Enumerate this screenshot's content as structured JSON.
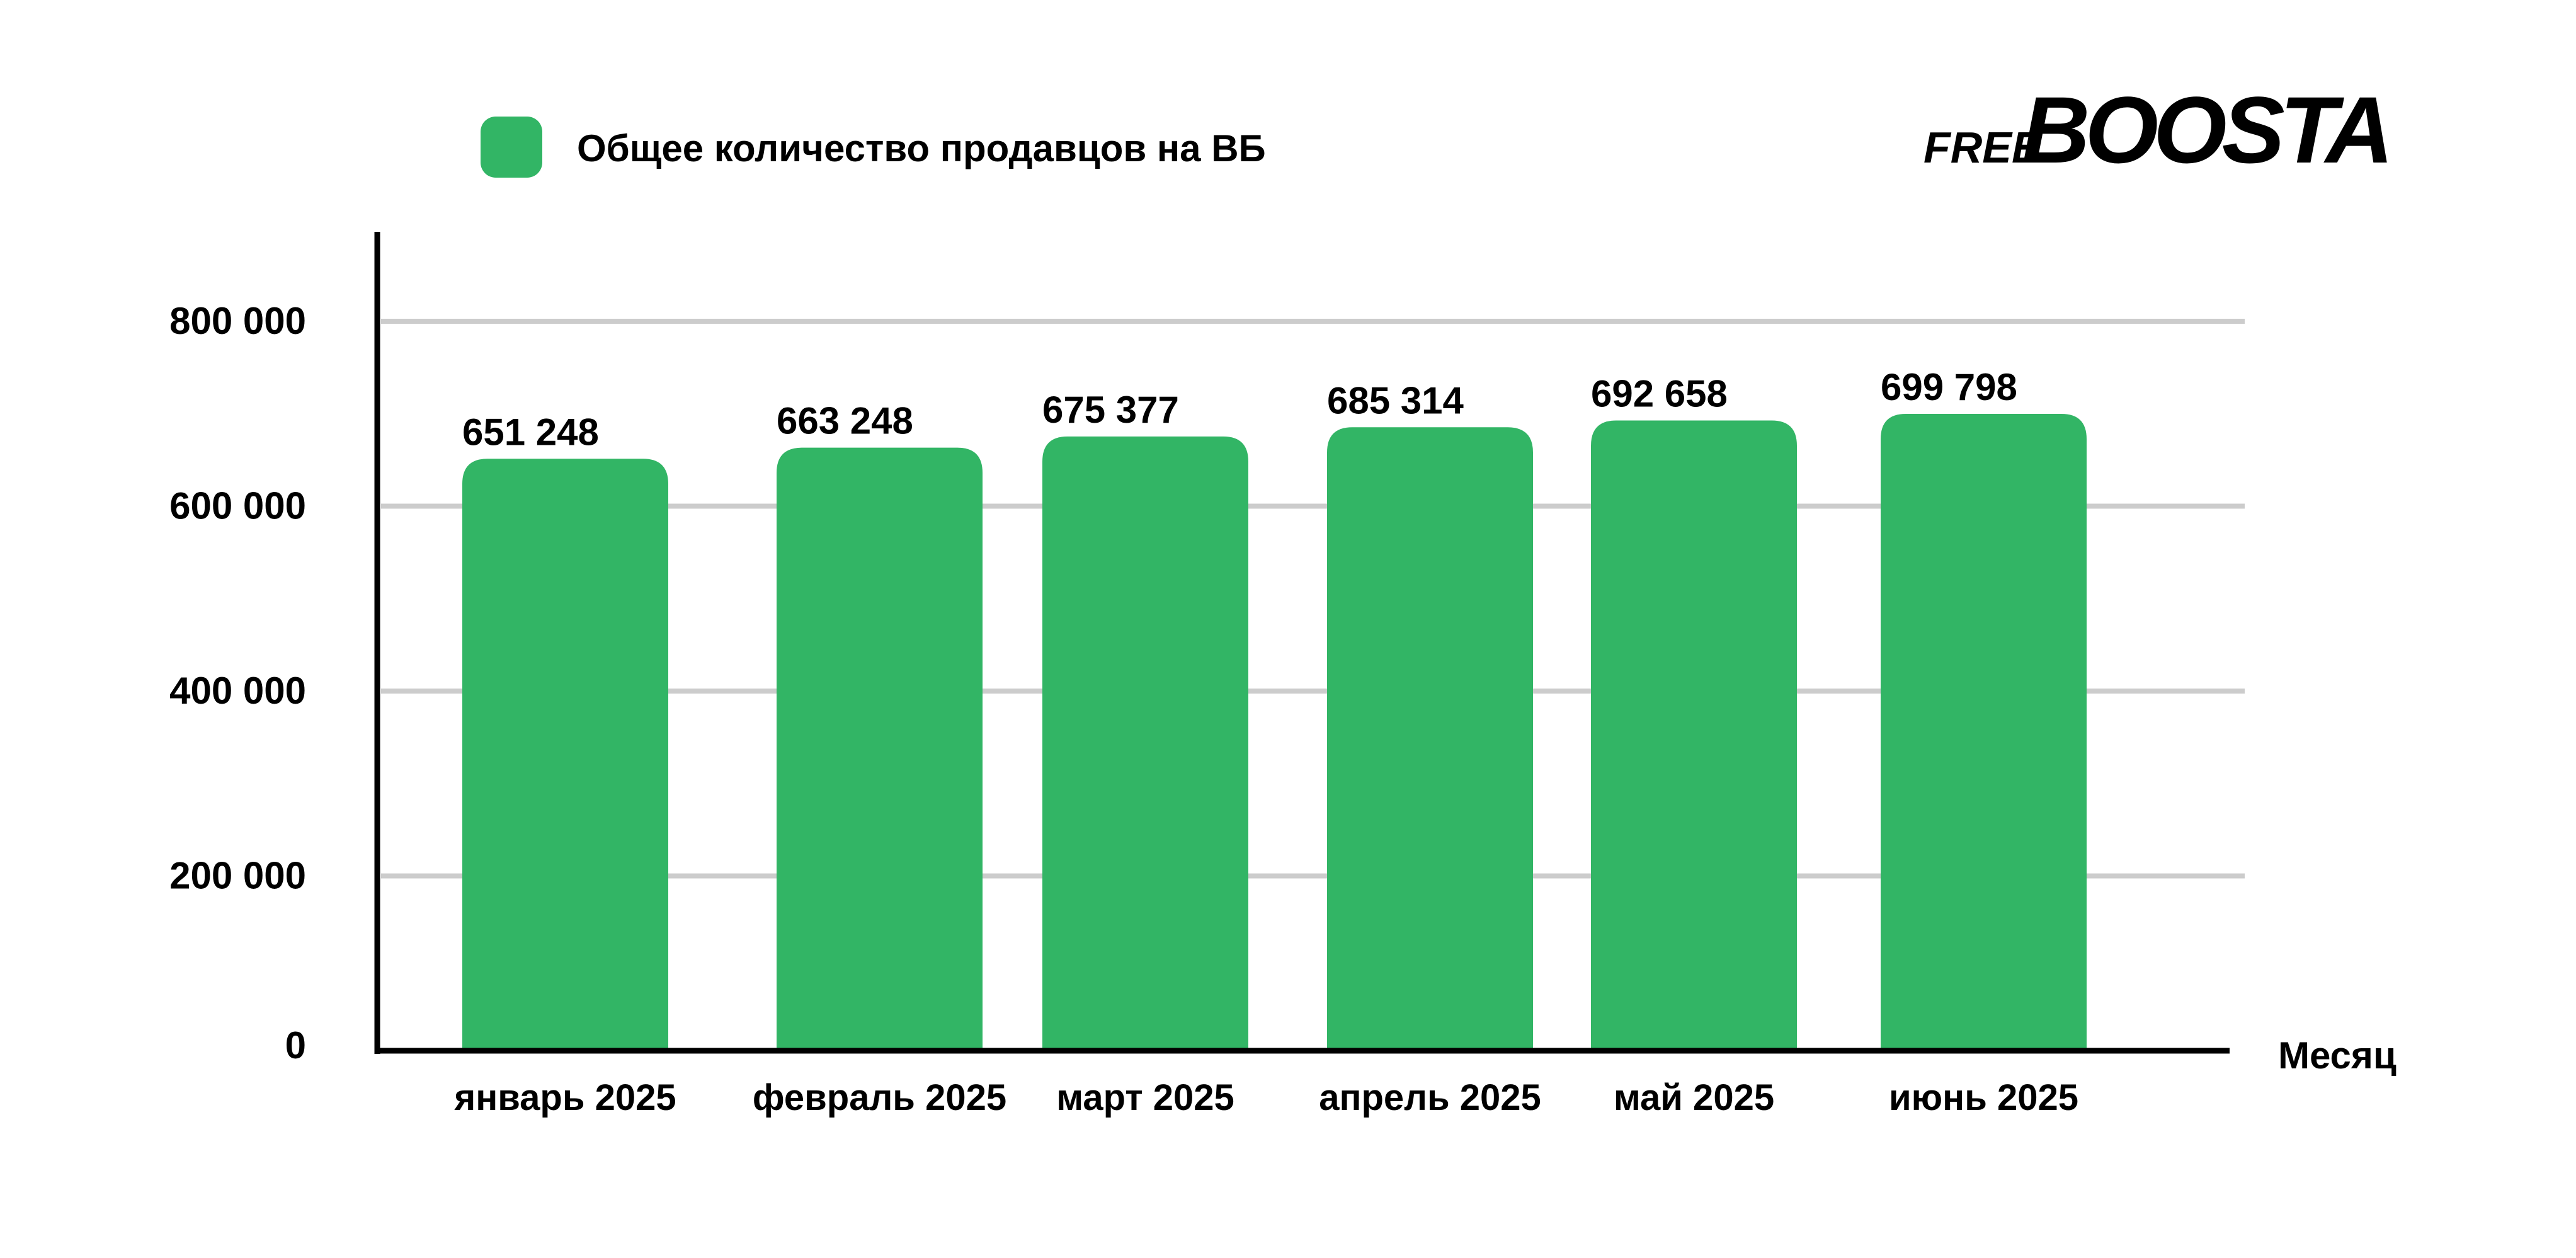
{
  "logo": {
    "part1": "FREE",
    "part2": "BOOSTA",
    "part1_color": "#0a9a3a",
    "part2_color": "#000000"
  },
  "chart_data": {
    "type": "bar",
    "title": "",
    "legend": [
      {
        "label": "Общее количество продавцов на ВБ",
        "color": "#32b565"
      }
    ],
    "legend_position": "top-left",
    "categories": [
      "январь 2025",
      "февраль 2025",
      "март 2025",
      "апрель 2025",
      "май 2025",
      "июнь 2025"
    ],
    "values": [
      651248,
      663248,
      675377,
      685314,
      692658,
      699798
    ],
    "value_labels": [
      "651 248",
      "663 248",
      "675 377",
      "685 314",
      "692 658",
      "699 798"
    ],
    "xlabel": "Месяц",
    "ylabel": "",
    "ylim": [
      0,
      800000
    ],
    "yticks": [
      0,
      200000,
      400000,
      600000,
      800000
    ],
    "ytick_labels": [
      "0",
      "200 000",
      "400 000",
      "600 000",
      "800 000"
    ],
    "grid": true,
    "bar_color": "#32b565"
  }
}
